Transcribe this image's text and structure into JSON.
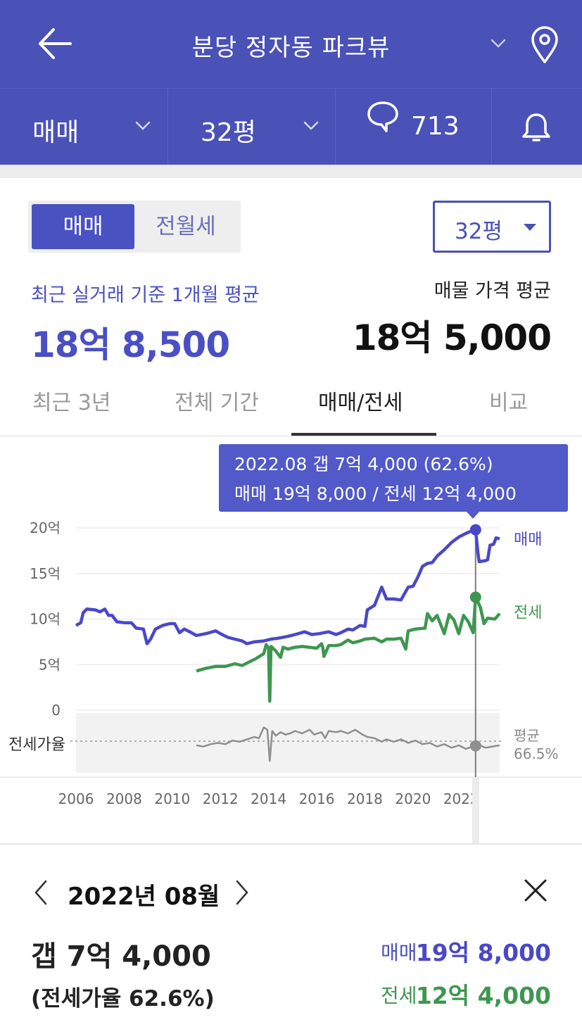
{
  "header": {
    "title": "분당 정자동 파크뷰"
  },
  "subbar": {
    "trade_type": "매매",
    "size": "32평",
    "comment_count": "713"
  },
  "toggle": {
    "active": "매매",
    "inactive": "전월세"
  },
  "size_select": "32평",
  "summary": {
    "recent_label": "최근 실거래 기준 1개월 평균",
    "recent_value": "18억 8,500",
    "listing_label": "매물 가격 평균",
    "listing_value": "18억 5,000"
  },
  "tabs": [
    {
      "label": "최근 3년"
    },
    {
      "label": "전체 기간"
    },
    {
      "label": "매매/전세"
    },
    {
      "label": "비교"
    }
  ],
  "tooltip": {
    "line1": "2022.08  갭 7억 4,000 (62.6%)",
    "line2": "매매 19억 8,000 / 전세 12억 4,000"
  },
  "colors": {
    "brand": "#4a51b7",
    "sale": "#4a48c8",
    "jeonse": "#3e9650",
    "ratio": "#8f8f8f"
  },
  "chart_data": {
    "type": "line",
    "y_unit": "억",
    "y_ticks": [
      "20억",
      "15억",
      "10억",
      "5억",
      "0"
    ],
    "ylim": [
      0,
      20
    ],
    "x_ticks": [
      "2006",
      "2008",
      "2010",
      "2012",
      "2014",
      "2016",
      "2018",
      "2020",
      "2022"
    ],
    "xlim": [
      2006.0,
      2023.6
    ],
    "ratio_label": "전세가율",
    "ratio_avg_label": "평균",
    "ratio_avg_value": "66.5%",
    "ratio_avg": 66.5,
    "selected_x": 2022.6,
    "series": [
      {
        "name": "매매",
        "points": [
          [
            2006.0,
            9.3
          ],
          [
            2006.2,
            9.6
          ],
          [
            2006.3,
            10.7
          ],
          [
            2006.45,
            11.1
          ],
          [
            2006.8,
            11.0
          ],
          [
            2007.0,
            10.8
          ],
          [
            2007.2,
            11.1
          ],
          [
            2007.35,
            10.4
          ],
          [
            2007.5,
            10.4
          ],
          [
            2007.7,
            9.7
          ],
          [
            2008.0,
            9.6
          ],
          [
            2008.3,
            9.6
          ],
          [
            2008.5,
            9.0
          ],
          [
            2008.8,
            8.9
          ],
          [
            2008.95,
            7.3
          ],
          [
            2009.1,
            7.8
          ],
          [
            2009.3,
            8.9
          ],
          [
            2009.6,
            9.3
          ],
          [
            2009.9,
            9.5
          ],
          [
            2010.1,
            9.5
          ],
          [
            2010.3,
            8.5
          ],
          [
            2010.5,
            8.9
          ],
          [
            2010.8,
            8.5
          ],
          [
            2011.0,
            8.2
          ],
          [
            2011.4,
            8.4
          ],
          [
            2011.8,
            8.7
          ],
          [
            2012.0,
            8.4
          ],
          [
            2012.3,
            8.0
          ],
          [
            2012.6,
            7.8
          ],
          [
            2012.9,
            7.6
          ],
          [
            2013.1,
            7.3
          ],
          [
            2013.4,
            7.5
          ],
          [
            2013.8,
            7.6
          ],
          [
            2014.1,
            7.8
          ],
          [
            2014.4,
            7.9
          ],
          [
            2014.8,
            8.1
          ],
          [
            2015.1,
            8.3
          ],
          [
            2015.5,
            8.6
          ],
          [
            2015.8,
            8.3
          ],
          [
            2016.1,
            8.4
          ],
          [
            2016.5,
            8.6
          ],
          [
            2016.8,
            8.3
          ],
          [
            2017.0,
            8.5
          ],
          [
            2017.3,
            8.9
          ],
          [
            2017.5,
            8.8
          ],
          [
            2017.8,
            9.3
          ],
          [
            2018.0,
            9.2
          ],
          [
            2018.1,
            11.0
          ],
          [
            2018.4,
            11.5
          ],
          [
            2018.7,
            13.5
          ],
          [
            2018.9,
            12.2
          ],
          [
            2019.2,
            12.2
          ],
          [
            2019.5,
            12.1
          ],
          [
            2019.8,
            13.5
          ],
          [
            2020.0,
            13.6
          ],
          [
            2020.2,
            14.6
          ],
          [
            2020.4,
            15.8
          ],
          [
            2020.6,
            16.1
          ],
          [
            2020.8,
            16.2
          ],
          [
            2021.0,
            16.9
          ],
          [
            2021.3,
            17.6
          ],
          [
            2021.6,
            18.4
          ],
          [
            2021.9,
            19.0
          ],
          [
            2022.2,
            19.4
          ],
          [
            2022.45,
            19.7
          ],
          [
            2022.6,
            19.8
          ],
          [
            2022.7,
            17.2
          ],
          [
            2022.75,
            16.3
          ],
          [
            2023.0,
            16.4
          ],
          [
            2023.1,
            16.5
          ],
          [
            2023.2,
            18.1
          ],
          [
            2023.35,
            18.2
          ],
          [
            2023.45,
            18.9
          ],
          [
            2023.6,
            18.8
          ]
        ]
      },
      {
        "name": "전세",
        "points": [
          [
            2011.0,
            4.3
          ],
          [
            2011.4,
            4.6
          ],
          [
            2011.8,
            4.8
          ],
          [
            2012.2,
            4.8
          ],
          [
            2012.6,
            5.1
          ],
          [
            2012.9,
            4.9
          ],
          [
            2013.2,
            5.3
          ],
          [
            2013.5,
            5.7
          ],
          [
            2013.8,
            6.2
          ],
          [
            2013.9,
            7.2
          ],
          [
            2014.0,
            6.8
          ],
          [
            2014.05,
            1.0
          ],
          [
            2014.1,
            7.0
          ],
          [
            2014.3,
            6.5
          ],
          [
            2014.5,
            5.8
          ],
          [
            2014.6,
            6.9
          ],
          [
            2014.8,
            6.7
          ],
          [
            2015.1,
            6.9
          ],
          [
            2015.4,
            7.0
          ],
          [
            2015.7,
            6.9
          ],
          [
            2016.0,
            6.8
          ],
          [
            2016.2,
            7.3
          ],
          [
            2016.25,
            6.9
          ],
          [
            2016.3,
            5.9
          ],
          [
            2016.5,
            7.1
          ],
          [
            2016.8,
            7.1
          ],
          [
            2017.0,
            7.2
          ],
          [
            2017.3,
            7.7
          ],
          [
            2017.5,
            7.4
          ],
          [
            2017.8,
            7.6
          ],
          [
            2018.0,
            7.8
          ],
          [
            2018.4,
            7.9
          ],
          [
            2018.7,
            7.5
          ],
          [
            2018.9,
            7.8
          ],
          [
            2019.2,
            7.8
          ],
          [
            2019.5,
            7.9
          ],
          [
            2019.7,
            6.7
          ],
          [
            2019.8,
            8.7
          ],
          [
            2020.1,
            8.9
          ],
          [
            2020.5,
            9.0
          ],
          [
            2020.6,
            10.6
          ],
          [
            2020.8,
            9.8
          ],
          [
            2021.0,
            10.4
          ],
          [
            2021.3,
            8.4
          ],
          [
            2021.5,
            10.5
          ],
          [
            2021.7,
            9.9
          ],
          [
            2021.9,
            8.4
          ],
          [
            2022.1,
            10.4
          ],
          [
            2022.3,
            9.7
          ],
          [
            2022.5,
            8.5
          ],
          [
            2022.6,
            12.4
          ],
          [
            2022.8,
            11.3
          ],
          [
            2022.95,
            9.5
          ],
          [
            2023.1,
            10.1
          ],
          [
            2023.4,
            10.0
          ],
          [
            2023.6,
            10.6
          ]
        ]
      },
      {
        "name": "전세가율",
        "points": [
          [
            2011.0,
            63.0
          ],
          [
            2011.3,
            62.0
          ],
          [
            2011.6,
            64.0
          ],
          [
            2011.9,
            65.0
          ],
          [
            2012.2,
            64.0
          ],
          [
            2012.5,
            67.0
          ],
          [
            2012.8,
            66.0
          ],
          [
            2013.1,
            68.0
          ],
          [
            2013.4,
            70.0
          ],
          [
            2013.6,
            69.0
          ],
          [
            2013.8,
            78.0
          ],
          [
            2013.95,
            76.0
          ],
          [
            2014.05,
            50.0
          ],
          [
            2014.15,
            75.0
          ],
          [
            2014.3,
            71.0
          ],
          [
            2014.5,
            74.0
          ],
          [
            2014.7,
            72.0
          ],
          [
            2014.9,
            73.0
          ],
          [
            2015.1,
            75.0
          ],
          [
            2015.4,
            73.0
          ],
          [
            2015.7,
            76.0
          ],
          [
            2015.9,
            72.0
          ],
          [
            2016.2,
            74.0
          ],
          [
            2016.35,
            69.0
          ],
          [
            2016.5,
            75.0
          ],
          [
            2016.8,
            74.0
          ],
          [
            2017.0,
            75.0
          ],
          [
            2017.3,
            73.0
          ],
          [
            2017.6,
            76.0
          ],
          [
            2017.9,
            72.0
          ],
          [
            2018.1,
            70.0
          ],
          [
            2018.4,
            69.0
          ],
          [
            2018.7,
            66.0
          ],
          [
            2018.9,
            68.0
          ],
          [
            2019.2,
            66.0
          ],
          [
            2019.5,
            68.0
          ],
          [
            2019.8,
            65.0
          ],
          [
            2020.1,
            67.0
          ],
          [
            2020.4,
            64.0
          ],
          [
            2020.7,
            65.0
          ],
          [
            2021.0,
            62.0
          ],
          [
            2021.3,
            64.0
          ],
          [
            2021.6,
            61.0
          ],
          [
            2021.9,
            63.0
          ],
          [
            2022.2,
            60.0
          ],
          [
            2022.45,
            62.0
          ],
          [
            2022.6,
            62.6
          ],
          [
            2022.8,
            63.0
          ],
          [
            2023.0,
            61.0
          ],
          [
            2023.3,
            62.0
          ],
          [
            2023.6,
            63.0
          ]
        ]
      }
    ]
  },
  "detail": {
    "month": "2022년 08월",
    "gap": "갭 7억 4,000",
    "ratio": "(전세가율 62.6%)",
    "sale_label": "매매",
    "sale_value": "19억 8,000",
    "jeonse_label": "전세",
    "jeonse_value": "12억 4,000"
  }
}
